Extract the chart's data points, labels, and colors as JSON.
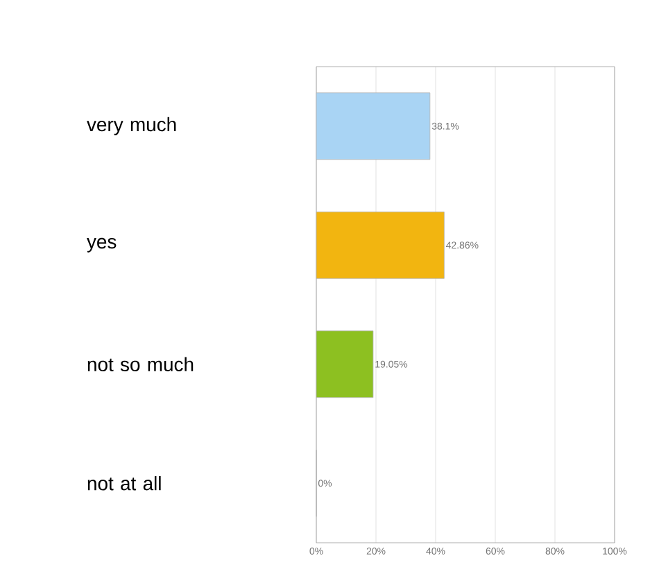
{
  "chart_data": {
    "type": "bar",
    "orientation": "horizontal",
    "categories": [
      "very much",
      "yes",
      "not so much",
      "not at all"
    ],
    "values": [
      38.1,
      42.86,
      19.05,
      0
    ],
    "colors": [
      "#a9d4f4",
      "#f2b510",
      "#8dc021",
      "#cccccc"
    ],
    "value_labels": [
      "38.1%",
      "42.86%",
      "19.05%",
      "0%"
    ],
    "xlim": [
      0,
      100
    ],
    "xticks": [
      {
        "value": 0,
        "label": "0%"
      },
      {
        "value": 20,
        "label": "20%"
      },
      {
        "value": 40,
        "label": "40%"
      },
      {
        "value": 60,
        "label": "60%"
      },
      {
        "value": 80,
        "label": "80%"
      },
      {
        "value": 100,
        "label": "100%"
      }
    ],
    "grid": "x"
  }
}
